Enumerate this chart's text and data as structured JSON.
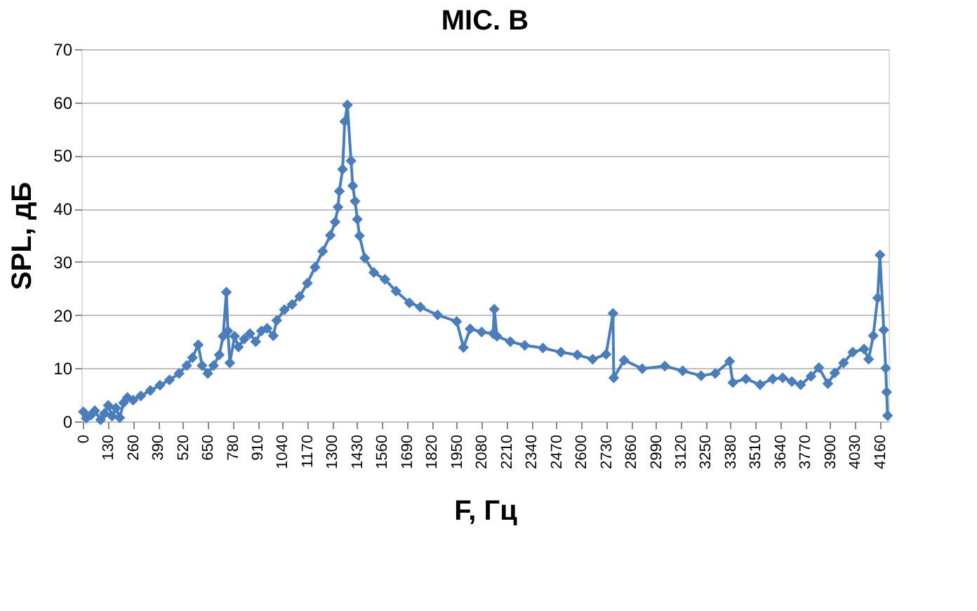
{
  "chart_data": {
    "type": "line",
    "title": "MIC. B",
    "xlabel": "F, Гц",
    "ylabel": "SPL, дБ",
    "x": [
      0,
      15,
      40,
      60,
      90,
      110,
      130,
      150,
      170,
      190,
      210,
      230,
      260,
      300,
      350,
      400,
      450,
      500,
      540,
      570,
      600,
      620,
      650,
      680,
      710,
      730,
      747,
      755,
      765,
      790,
      810,
      840,
      870,
      900,
      930,
      960,
      992,
      1010,
      1050,
      1090,
      1130,
      1170,
      1210,
      1250,
      1290,
      1315,
      1330,
      1337,
      1354,
      1365,
      1379,
      1398,
      1407,
      1419,
      1431,
      1442,
      1470,
      1517,
      1575,
      1633,
      1703,
      1760,
      1850,
      1950,
      1985,
      2020,
      2080,
      2140,
      2146,
      2160,
      2230,
      2305,
      2400,
      2494,
      2580,
      2660,
      2730,
      2766,
      2770,
      2824,
      2919,
      3037,
      3130,
      3226,
      3300,
      3375,
      3392,
      3460,
      3534,
      3600,
      3652,
      3700,
      3746,
      3800,
      3841,
      3888,
      3924,
      3970,
      4018,
      4077,
      4101,
      4125,
      4148,
      4160,
      4180,
      4190,
      4195,
      4200
    ],
    "series": [
      {
        "color": "#4a7ebb",
        "values": [
          1.8,
          0.6,
          1.2,
          2,
          0.3,
          1.5,
          3,
          1,
          2.5,
          0.7,
          3.5,
          4.5,
          4,
          4.8,
          5.8,
          6.8,
          7.8,
          9,
          10.5,
          12,
          14.4,
          10.5,
          9,
          10.5,
          12.5,
          16,
          24.3,
          17,
          11,
          16,
          14,
          15.5,
          16.5,
          15,
          17,
          17.5,
          16.1,
          19,
          21,
          22,
          23.5,
          26,
          29,
          32,
          35,
          37.5,
          40.3,
          43.3,
          47.4,
          56.4,
          59.5,
          49,
          44.3,
          41.4,
          38,
          34.9,
          30.7,
          28,
          26.7,
          24.5,
          22.3,
          21.5,
          20,
          18.8,
          13.9,
          17.4,
          16.8,
          16.5,
          21.1,
          16,
          15,
          14.3,
          13.8,
          13,
          12.5,
          11.7,
          12.6,
          20.3,
          8.2,
          11.5,
          9.9,
          10.4,
          9.5,
          8.6,
          9,
          11.3,
          7.3,
          8,
          6.9,
          8,
          8.2,
          7.5,
          6.9,
          8.5,
          10.1,
          7.1,
          9.1,
          11,
          13,
          13.6,
          11.7,
          16.1,
          23.2,
          31.3,
          17.2,
          10,
          5.5,
          1.1
        ]
      }
    ],
    "xlim": [
      -10,
      4205
    ],
    "xticks": [
      0,
      130,
      260,
      390,
      520,
      650,
      780,
      910,
      1040,
      1170,
      1300,
      1430,
      1560,
      1690,
      1820,
      1950,
      2080,
      2210,
      2340,
      2470,
      2600,
      2730,
      2860,
      2990,
      3120,
      3250,
      3380,
      3510,
      3640,
      3770,
      3900,
      4030,
      4160
    ],
    "ylim": [
      0,
      70
    ],
    "yticks": [
      0,
      10,
      20,
      30,
      40,
      50,
      60,
      70
    ],
    "grid": "y",
    "marker": "diamond",
    "line_style": "solid"
  }
}
